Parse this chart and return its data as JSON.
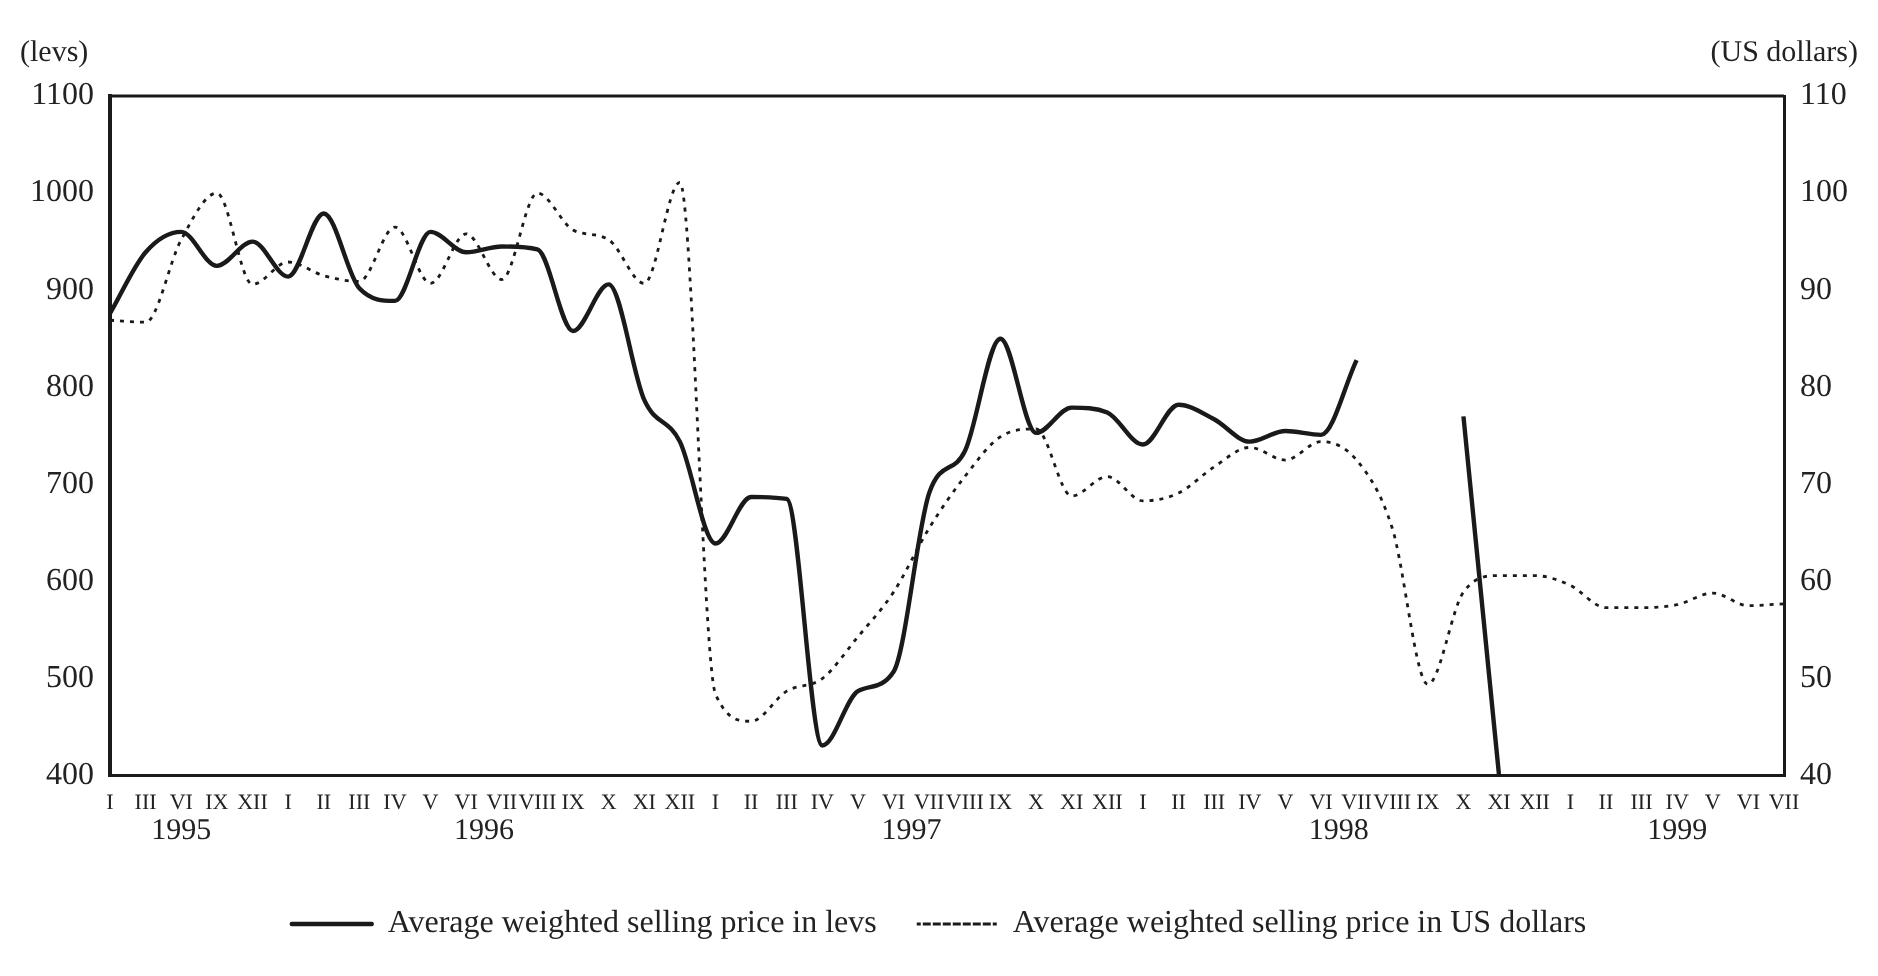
{
  "chart_data": {
    "type": "line",
    "ylabel": "(levs)",
    "y2label": "(US dollars)",
    "categories": [
      "I",
      "III",
      "VI",
      "IX",
      "XII",
      "I",
      "II",
      "III",
      "IV",
      "V",
      "VI",
      "VII",
      "VIII",
      "IX",
      "X",
      "XI",
      "XII",
      "I",
      "II",
      "III",
      "IV",
      "V",
      "VI",
      "VII",
      "VIII",
      "IX",
      "X",
      "XI",
      "XII",
      "I",
      "II",
      "III",
      "IV",
      "V",
      "VI",
      "VII",
      "VIII",
      "IX",
      "X",
      "XI",
      "XII",
      "I",
      "II",
      "III",
      "IV",
      "V",
      "VI",
      "VII"
    ],
    "annotations": [
      "1995",
      "1996",
      "1997",
      "1998",
      "1999"
    ],
    "ylim": [
      400,
      1100
    ],
    "yticks": [
      400,
      500,
      600,
      700,
      800,
      900,
      1000,
      1100
    ],
    "y2lim": [
      40,
      110
    ],
    "y2ticks": [
      40,
      50,
      60,
      70,
      80,
      90,
      100,
      110
    ],
    "grid": false,
    "legend": "bottom",
    "marker": "none",
    "series": [
      {
        "name": "Average weighted selling price in levs",
        "color": "#1a1a1a",
        "line_style": "solid",
        "values": [
          876,
          939,
          960,
          925,
          950,
          914,
          979,
          902,
          889,
          960,
          939,
          945,
          942,
          858,
          906,
          787,
          744,
          639,
          687,
          685,
          431,
          487,
          507,
          691,
          734,
          850,
          753,
          779,
          774,
          741,
          782,
          767,
          744,
          755,
          751,
          828,
          null,
          null,
          770,
          400,
          null,
          null,
          null,
          null,
          null,
          null,
          null,
          null
        ]
      },
      {
        "name": "Average weighted selling price in US dollars",
        "color": "#1a1a1a",
        "line_style": "dotted",
        "axis": "y2",
        "values": [
          86.9,
          86.7,
          95.2,
          100,
          90.6,
          92.9,
          91.5,
          90.9,
          96.5,
          90.7,
          95.8,
          91.1,
          100,
          96.2,
          95.2,
          90.7,
          101.1,
          48.4,
          45.6,
          48.7,
          50,
          54.3,
          58.9,
          65.5,
          70.8,
          74.9,
          75.7,
          68.8,
          70.8,
          68.3,
          69.1,
          71.8,
          73.8,
          72.5,
          74.4,
          72.5,
          65.5,
          49.4,
          58.9,
          60.6,
          60.6,
          59.6,
          57.3,
          57.3,
          57.6,
          58.8,
          57.5,
          57.7
        ]
      }
    ]
  }
}
